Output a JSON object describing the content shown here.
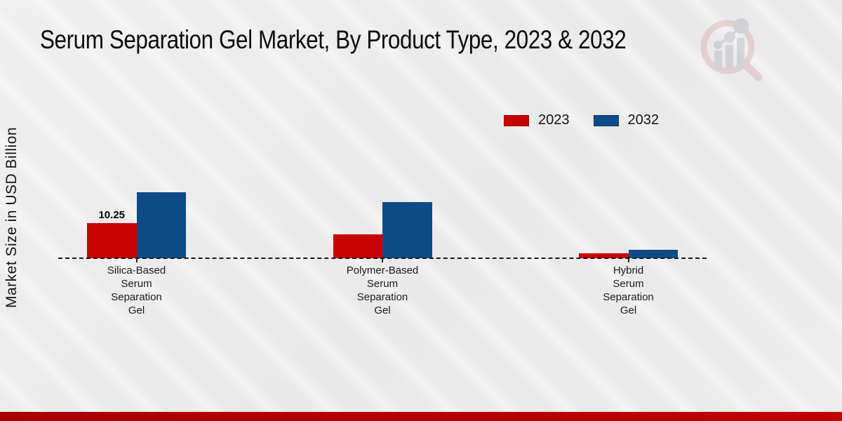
{
  "chart_data": {
    "type": "bar",
    "title": "Serum Separation Gel Market, By Product Type, 2023 & 2032",
    "ylabel": "Market Size in USD Billion",
    "xlabel": "",
    "categories": [
      "Silica-Based Serum Separation Gel",
      "Polymer-Based Serum Separation Gel",
      "Hybrid Serum Separation Gel"
    ],
    "category_display_lines": [
      [
        "Silica-Based",
        "Serum",
        "Separation",
        "Gel"
      ],
      [
        "Polymer-Based",
        "Serum",
        "Separation",
        "Gel"
      ],
      [
        "Hybrid",
        "Serum",
        "Separation",
        "Gel"
      ]
    ],
    "series": [
      {
        "name": "2023",
        "color": "#c80000",
        "values": [
          10.25,
          7.0,
          1.4
        ]
      },
      {
        "name": "2032",
        "color": "#0e4b86",
        "values": [
          19.3,
          16.4,
          2.5
        ]
      }
    ],
    "data_labels": [
      {
        "series_index": 0,
        "category_index": 0,
        "text": "10.25"
      }
    ],
    "legend_position": "top-right",
    "grid": false,
    "baseline_style": "dashed",
    "ylim": [
      0,
      22
    ],
    "units": "USD Billion"
  },
  "branding": {
    "footer_bar_color": "#b30404",
    "logo_ring_color": "#dba8ae",
    "logo_bar_color": "#aeb2bc"
  }
}
